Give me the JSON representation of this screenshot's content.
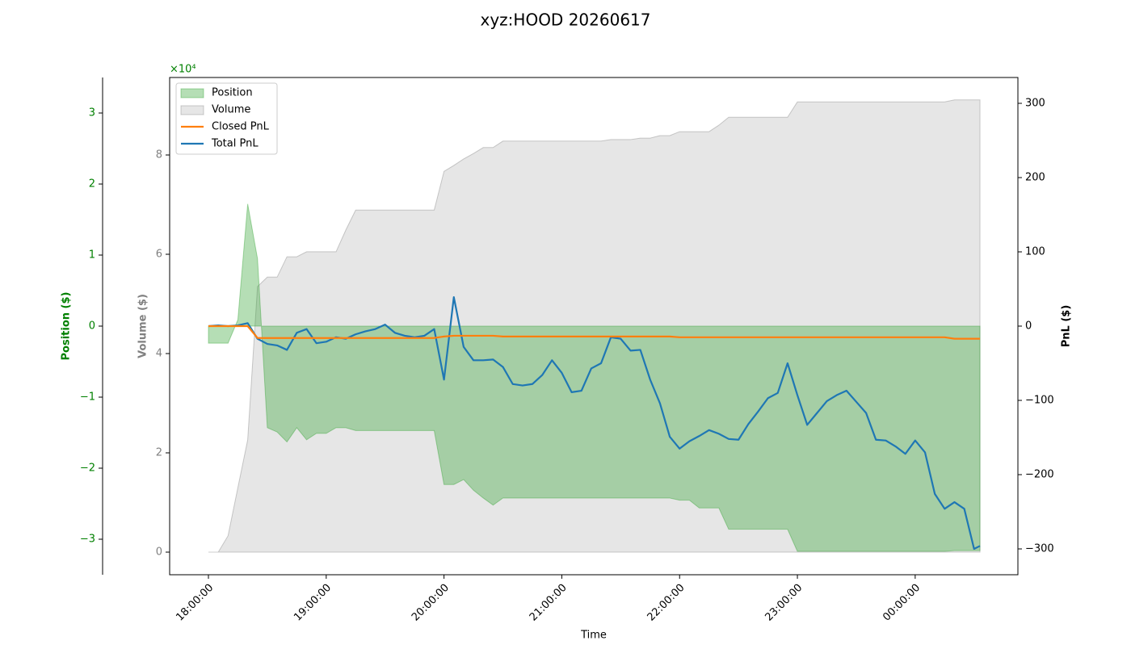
{
  "chart_data": {
    "type": "line",
    "title": "xyz:HOOD 20260617",
    "xlabel": "Time",
    "x": [
      "18:00:00",
      "18:05:00",
      "18:10:00",
      "18:15:00",
      "18:20:00",
      "18:25:00",
      "18:30:00",
      "18:35:00",
      "18:40:00",
      "18:45:00",
      "18:50:00",
      "18:55:00",
      "19:00:00",
      "19:05:00",
      "19:10:00",
      "19:15:00",
      "19:20:00",
      "19:25:00",
      "19:30:00",
      "19:35:00",
      "19:40:00",
      "19:45:00",
      "19:50:00",
      "19:55:00",
      "20:00:00",
      "20:05:00",
      "20:10:00",
      "20:15:00",
      "20:20:00",
      "20:25:00",
      "20:30:00",
      "20:35:00",
      "20:40:00",
      "20:45:00",
      "20:50:00",
      "20:55:00",
      "21:00:00",
      "21:05:00",
      "21:10:00",
      "21:15:00",
      "21:20:00",
      "21:25:00",
      "21:30:00",
      "21:35:00",
      "21:40:00",
      "21:45:00",
      "21:50:00",
      "21:55:00",
      "22:00:00",
      "22:05:00",
      "22:10:00",
      "22:15:00",
      "22:20:00",
      "22:25:00",
      "22:30:00",
      "22:35:00",
      "22:40:00",
      "22:45:00",
      "22:50:00",
      "22:55:00",
      "23:00:00",
      "23:05:00",
      "23:10:00",
      "23:15:00",
      "23:20:00",
      "23:25:00",
      "23:30:00",
      "23:35:00",
      "23:40:00",
      "23:45:00",
      "23:50:00",
      "23:55:00",
      "00:00:00",
      "00:05:00",
      "00:10:00",
      "00:15:00",
      "00:20:00",
      "00:25:00",
      "00:30:00",
      "00:33:00"
    ],
    "xlim": [
      "17:40:15",
      "00:52:19"
    ],
    "xticks": [
      "18:00:00",
      "19:00:00",
      "20:00:00",
      "21:00:00",
      "22:00:00",
      "23:00:00",
      "00:00:00"
    ],
    "ylabel": "Volume ($)",
    "ycolor": "#808080",
    "ylim": [
      -4553,
      95610
    ],
    "yticks": [
      0,
      {
        "value": 20000,
        "label": "2"
      },
      {
        "value": 40000,
        "label": "4"
      },
      {
        "value": 60000,
        "label": "6"
      },
      {
        "value": 80000,
        "label": "8"
      }
    ],
    "y2label": "PnL ($)",
    "y2color": "#000000",
    "y2lim": [
      -334.8,
      334.8
    ],
    "y2ticks": [
      {
        "value": -300,
        "label": "−300"
      },
      {
        "value": -200,
        "label": "−200"
      },
      {
        "value": -100,
        "label": "−100"
      },
      0,
      100,
      200,
      300
    ],
    "y3label": "Position ($)",
    "y3color": "#008000",
    "y3offset_label": "×10⁴",
    "y3lim": [
      -35000,
      35000
    ],
    "y3ticks": [
      {
        "value": -30000,
        "label": "−3"
      },
      {
        "value": -20000,
        "label": "−2"
      },
      {
        "value": -10000,
        "label": "−1"
      },
      0,
      {
        "value": 10000,
        "label": "1"
      },
      {
        "value": 20000,
        "label": "2"
      },
      {
        "value": 30000,
        "label": "3"
      }
    ],
    "legend": "upper left",
    "series": [
      {
        "name": "Position",
        "type": "area",
        "axis": "y3",
        "color": "#2ca02c",
        "values": [
          -2400,
          -2400,
          -2400,
          900,
          17200,
          9500,
          -14300,
          -14900,
          -16300,
          -14300,
          -16000,
          -15100,
          -15100,
          -14300,
          -14300,
          -14700,
          -14700,
          -14700,
          -14700,
          -14700,
          -14700,
          -14700,
          -14700,
          -14700,
          -22300,
          -22300,
          -21600,
          -23100,
          -24200,
          -25200,
          -24200,
          -24200,
          -24200,
          -24200,
          -24200,
          -24200,
          -24200,
          -24200,
          -24200,
          -24200,
          -24200,
          -24200,
          -24200,
          -24200,
          -24200,
          -24200,
          -24200,
          -24200,
          -24500,
          -24500,
          -25600,
          -25600,
          -25600,
          -28600,
          -28600,
          -28600,
          -28600,
          -28600,
          -28600,
          -28600,
          -31700,
          -31700,
          -31700,
          -31700,
          -31700,
          -31700,
          -31700,
          -31700,
          -31700,
          -31700,
          -31700,
          -31700,
          -31700,
          -31700,
          -31700,
          -31700,
          -31600,
          -31600,
          -31600,
          -31600
        ]
      },
      {
        "name": "Volume",
        "type": "area",
        "axis": "y",
        "color": "#808080",
        "values": [
          0,
          0,
          3300,
          13000,
          22600,
          53500,
          55400,
          55400,
          59500,
          59500,
          60500,
          60500,
          60500,
          60500,
          64900,
          68900,
          68900,
          68900,
          68900,
          68900,
          68900,
          68900,
          68900,
          68900,
          76700,
          77900,
          79200,
          80300,
          81500,
          81500,
          82800,
          82800,
          82800,
          82800,
          82800,
          82800,
          82800,
          82800,
          82800,
          82800,
          82800,
          83100,
          83100,
          83100,
          83400,
          83400,
          83900,
          83900,
          84700,
          84700,
          84700,
          84700,
          86000,
          87600,
          87600,
          87600,
          87600,
          87600,
          87600,
          87600,
          90700,
          90700,
          90700,
          90700,
          90700,
          90700,
          90700,
          90700,
          90700,
          90700,
          90700,
          90700,
          90700,
          90700,
          90700,
          90700,
          91100,
          91100,
          91100,
          91100
        ]
      },
      {
        "name": "Closed PnL",
        "type": "line",
        "axis": "y2",
        "color": "#ff7f0e",
        "values": [
          0,
          0,
          0,
          0,
          0,
          -16,
          -16,
          -16,
          -16,
          -16,
          -16,
          -16,
          -16,
          -16,
          -16,
          -16,
          -16,
          -16,
          -16,
          -16,
          -16,
          -16,
          -16,
          -16,
          -14,
          -13,
          -13,
          -13,
          -13,
          -13,
          -14,
          -14,
          -14,
          -14,
          -14,
          -14,
          -14,
          -14,
          -14,
          -14,
          -14,
          -14,
          -14,
          -14,
          -14,
          -14,
          -14,
          -14,
          -15,
          -15,
          -15,
          -15,
          -15,
          -15,
          -15,
          -15,
          -15,
          -15,
          -15,
          -15,
          -15,
          -15,
          -15,
          -15,
          -15,
          -15,
          -15,
          -15,
          -15,
          -15,
          -15,
          -15,
          -15,
          -15,
          -15,
          -15,
          -17,
          -17,
          -17,
          -17
        ]
      },
      {
        "name": "Total PnL",
        "type": "line",
        "axis": "y2",
        "color": "#1f77b4",
        "values": [
          0,
          1,
          0,
          1,
          4,
          -17,
          -24,
          -26,
          -32,
          -9,
          -4,
          -23,
          -21,
          -15,
          -17,
          -11,
          -7,
          -4,
          2,
          -9,
          -13,
          -15,
          -13,
          -4,
          -72,
          39,
          -28,
          -46,
          -46,
          -45,
          -55,
          -78,
          -80,
          -78,
          -66,
          -46,
          -63,
          -89,
          -87,
          -57,
          -50,
          -15,
          -17,
          -33,
          -32,
          -72,
          -104,
          -149,
          -165,
          -155,
          -148,
          -140,
          -145,
          -152,
          -153,
          -132,
          -115,
          -97,
          -90,
          -50,
          -93,
          -133,
          -117,
          -101,
          -93,
          -87,
          -102,
          -117,
          -153,
          -154,
          -162,
          -172,
          -154,
          -170,
          -226,
          -246,
          -237,
          -246,
          -300,
          -296
        ]
      }
    ]
  }
}
